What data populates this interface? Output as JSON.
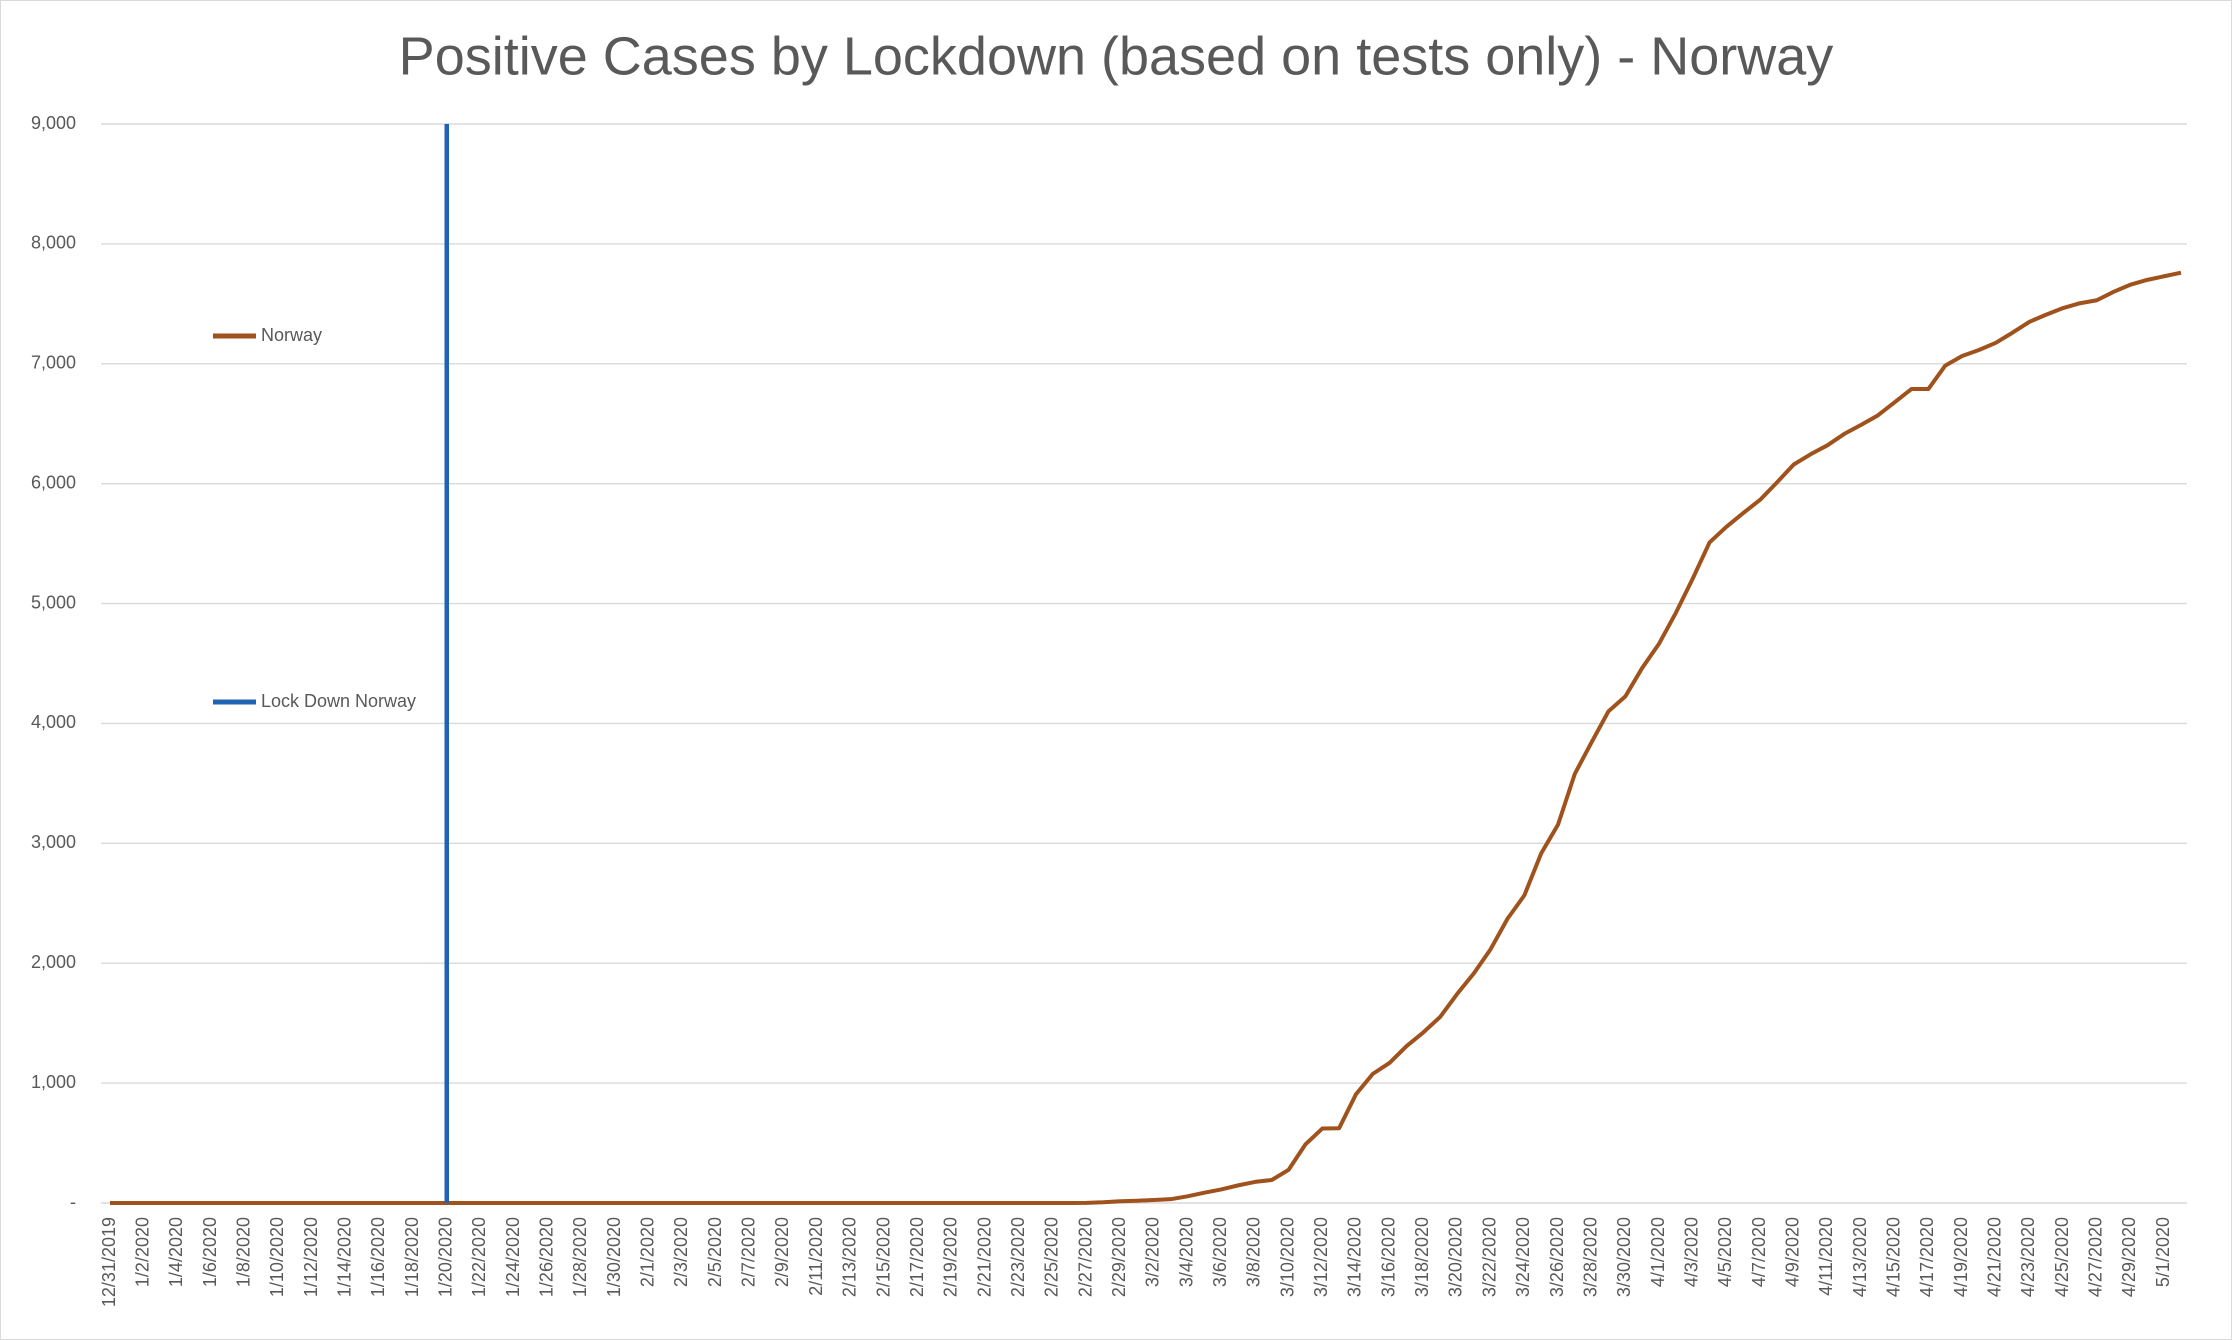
{
  "chart_data": {
    "type": "line",
    "title": "Positive Cases by Lockdown (based on tests only) - Norway",
    "categories": [
      "12/31/2019",
      null,
      "1/2/2020",
      null,
      "1/4/2020",
      null,
      "1/6/2020",
      null,
      "1/8/2020",
      null,
      "1/10/2020",
      null,
      "1/12/2020",
      null,
      "1/14/2020",
      null,
      "1/16/2020",
      null,
      "1/18/2020",
      null,
      "1/20/2020",
      null,
      "1/22/2020",
      null,
      "1/24/2020",
      null,
      "1/26/2020",
      null,
      "1/28/2020",
      null,
      "1/30/2020",
      null,
      "2/1/2020",
      null,
      "2/3/2020",
      null,
      "2/5/2020",
      null,
      "2/7/2020",
      null,
      "2/9/2020",
      null,
      "2/11/2020",
      null,
      "2/13/2020",
      null,
      "2/15/2020",
      null,
      "2/17/2020",
      null,
      "2/19/2020",
      null,
      "2/21/2020",
      null,
      "2/23/2020",
      null,
      "2/25/2020",
      null,
      "2/27/2020",
      null,
      "2/29/2020",
      null,
      "3/2/2020",
      null,
      "3/4/2020",
      null,
      "3/6/2020",
      null,
      "3/8/2020",
      null,
      "3/10/2020",
      null,
      "3/12/2020",
      null,
      "3/14/2020",
      null,
      "3/16/2020",
      null,
      "3/18/2020",
      null,
      "3/20/2020",
      null,
      "3/22/2020",
      null,
      "3/24/2020",
      null,
      "3/26/2020",
      null,
      "3/28/2020",
      null,
      "3/30/2020",
      null,
      "4/1/2020",
      null,
      "4/3/2020",
      null,
      "4/5/2020",
      null,
      "4/7/2020",
      null,
      "4/9/2020",
      null,
      "4/11/2020",
      null,
      "4/13/2020",
      null,
      "4/15/2020",
      null,
      "4/17/2020",
      null,
      "4/19/2020",
      null,
      "4/21/2020",
      null,
      "4/23/2020",
      null,
      "4/25/2020",
      null,
      "4/27/2020",
      null,
      "4/29/2020",
      null,
      "5/1/2020",
      null
    ],
    "series": [
      {
        "name": "Norway",
        "color": "#a0521c",
        "type": "line",
        "values": [
          0,
          0,
          0,
          0,
          0,
          0,
          0,
          0,
          0,
          0,
          0,
          0,
          0,
          0,
          0,
          0,
          0,
          0,
          0,
          0,
          0,
          0,
          0,
          0,
          0,
          0,
          0,
          0,
          0,
          0,
          0,
          0,
          0,
          0,
          0,
          0,
          0,
          0,
          0,
          0,
          0,
          0,
          0,
          0,
          0,
          0,
          0,
          0,
          0,
          0,
          0,
          0,
          0,
          0,
          0,
          0,
          0,
          0,
          1,
          6,
          15,
          19,
          25,
          32,
          56,
          86,
          113,
          147,
          176,
          192,
          277,
          489,
          621,
          624,
          907,
          1077,
          1169,
          1308,
          1423,
          1552,
          1742,
          1915,
          2118,
          2371,
          2566,
          2916,
          3156,
          3580,
          3845,
          4102,
          4226,
          4463,
          4665,
          4923,
          5208,
          5510,
          5640,
          5755,
          5865,
          6010,
          6160,
          6245,
          6320,
          6415,
          6490,
          6570,
          6680,
          6790,
          6790,
          6985,
          7065,
          7115,
          7175,
          7260,
          7350,
          7410,
          7465,
          7505,
          7530,
          7600,
          7660,
          7700,
          7730,
          7760
        ]
      },
      {
        "name": "Lock Down Norway",
        "color": "#1f63b5",
        "type": "column",
        "values": [
          null,
          null,
          null,
          null,
          null,
          null,
          null,
          null,
          null,
          null,
          null,
          null,
          null,
          null,
          null,
          null,
          null,
          null,
          null,
          null,
          9000,
          null,
          null,
          null,
          null,
          null,
          null,
          null,
          null,
          null,
          null,
          null,
          null,
          null,
          null,
          null,
          null,
          null,
          null,
          null,
          null,
          null,
          null,
          null,
          null,
          null,
          null,
          null,
          null,
          null,
          null,
          null,
          null,
          null,
          null,
          null,
          null,
          null,
          null,
          null,
          null,
          null,
          null,
          null,
          null,
          null,
          null,
          null,
          null,
          null,
          null,
          null,
          null,
          null,
          null,
          null,
          null,
          null,
          null,
          null,
          null,
          null,
          null,
          null,
          null,
          null,
          null,
          null,
          null,
          null,
          null,
          null,
          null,
          null,
          null,
          null,
          null,
          null,
          null,
          null,
          null,
          null,
          null,
          null,
          null,
          null,
          null,
          null,
          null,
          null,
          null,
          null,
          null,
          null,
          null,
          null,
          null,
          null,
          null,
          null,
          null,
          null,
          null,
          null
        ]
      }
    ],
    "ylim": [
      0,
      9000
    ],
    "yticks": [
      {
        "value": 0,
        "label": "-"
      },
      {
        "value": 1000,
        "label": "1,000"
      },
      {
        "value": 2000,
        "label": "2,000"
      },
      {
        "value": 3000,
        "label": "3,000"
      },
      {
        "value": 4000,
        "label": "4,000"
      },
      {
        "value": 5000,
        "label": "5,000"
      },
      {
        "value": 6000,
        "label": "6,000"
      },
      {
        "value": 7000,
        "label": "7,000"
      },
      {
        "value": 8000,
        "label": "8,000"
      },
      {
        "value": 9000,
        "label": "9,000"
      }
    ],
    "grid": true,
    "legend": "left"
  }
}
